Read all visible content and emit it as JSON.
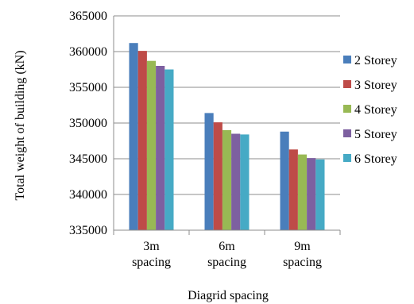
{
  "chart_data": {
    "type": "bar",
    "title": "",
    "xlabel": "Diagrid spacing",
    "ylabel": "Total weight of building (kN)",
    "categories": [
      [
        "3m",
        "spacing"
      ],
      [
        "6m",
        "spacing"
      ],
      [
        "9m",
        "spacing"
      ]
    ],
    "ylim": [
      335000,
      365000
    ],
    "yticks": [
      "335000",
      "340000",
      "345000",
      "350000",
      "355000",
      "360000",
      "365000"
    ],
    "grid": true,
    "legend_position": "right",
    "series": [
      {
        "name": "2 Storey",
        "color": "#4a7ebb",
        "values": [
          361200,
          351400,
          348800
        ]
      },
      {
        "name": "3 Storey",
        "color": "#be4b48",
        "values": [
          360100,
          350100,
          346300
        ]
      },
      {
        "name": "4 Storey",
        "color": "#98b954",
        "values": [
          358700,
          349000,
          345600
        ]
      },
      {
        "name": "5 Storey",
        "color": "#7d60a0",
        "values": [
          358000,
          348500,
          345100
        ]
      },
      {
        "name": "6 Storey",
        "color": "#46aac5",
        "values": [
          357500,
          348400,
          344900
        ]
      }
    ]
  }
}
